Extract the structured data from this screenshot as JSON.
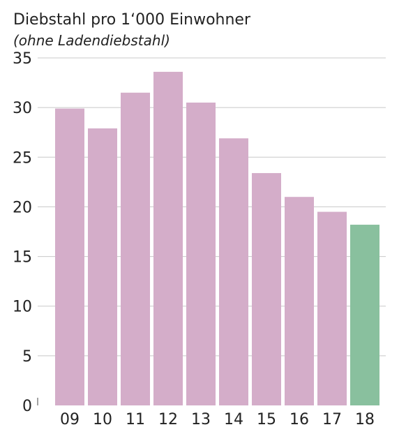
{
  "chart_data": {
    "type": "bar",
    "title": "Diebstahl pro 1‘000 Einwohner",
    "subtitle": "(ohne Ladendiebstahl)",
    "xlabel": "",
    "ylabel": "",
    "categories": [
      "09",
      "10",
      "11",
      "12",
      "13",
      "14",
      "15",
      "16",
      "17",
      "18"
    ],
    "values": [
      29.9,
      27.9,
      31.5,
      33.6,
      30.5,
      26.9,
      23.4,
      21.0,
      19.5,
      18.2
    ],
    "bar_colors": [
      "#d4adc9",
      "#d4adc9",
      "#d4adc9",
      "#d4adc9",
      "#d4adc9",
      "#d4adc9",
      "#d4adc9",
      "#d4adc9",
      "#d4adc9",
      "#89c09e"
    ],
    "ylim": [
      0,
      35
    ],
    "yticks": [
      0,
      5,
      10,
      15,
      20,
      25,
      30,
      35
    ],
    "grid": true,
    "grid_color": "#c8c8c8",
    "legend": "none"
  }
}
